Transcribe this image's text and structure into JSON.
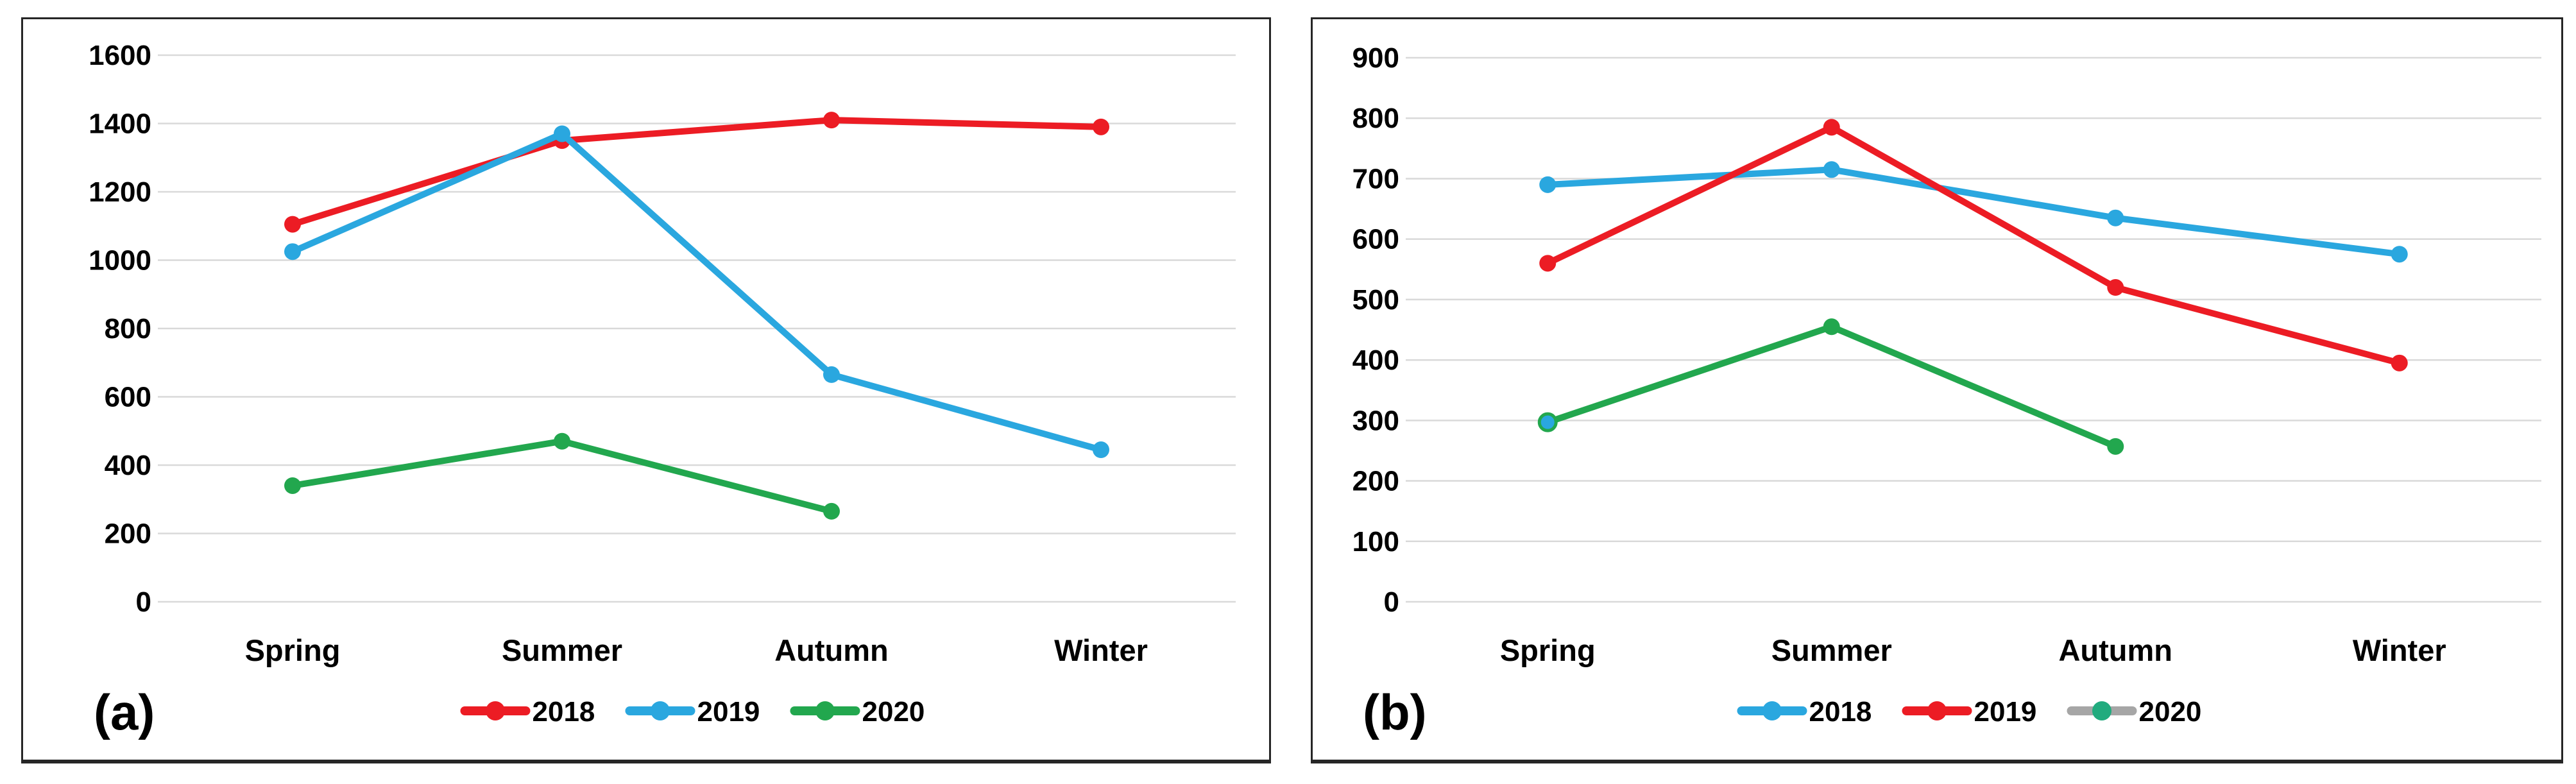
{
  "figure": {
    "background": "#ffffff",
    "panel_border_color": "#262626",
    "gridline_color": "#d9d9d9",
    "text_color": "#000000"
  },
  "chart_data": [
    {
      "type": "line",
      "panel_label": "(a)",
      "categories": [
        "Spring",
        "Summer",
        "Autumn",
        "Winter"
      ],
      "ylim": [
        0,
        1600
      ],
      "ytick_step": 200,
      "ytick_labels": [
        "0",
        "200",
        "400",
        "600",
        "800",
        "1000",
        "1200",
        "1400",
        "1600"
      ],
      "grid": true,
      "legend_position": "bottom",
      "series": [
        {
          "name": "2018",
          "color": "#ec1c24",
          "marker_color": "#ec1c24",
          "values": [
            1105,
            1350,
            1410,
            1390
          ]
        },
        {
          "name": "2019",
          "color": "#2aa7df",
          "marker_color": "#2aa7df",
          "values": [
            1025,
            1370,
            665,
            445
          ]
        },
        {
          "name": "2020",
          "color": "#22a74e",
          "marker_color": "#22a74e",
          "values": [
            340,
            470,
            265,
            null
          ]
        }
      ],
      "legend": [
        {
          "label": "2018",
          "line_color": "#ec1c24",
          "marker_color": "#ec1c24"
        },
        {
          "label": "2019",
          "line_color": "#2aa7df",
          "marker_color": "#2aa7df"
        },
        {
          "label": "2020",
          "line_color": "#22a74e",
          "marker_color": "#22a74e"
        }
      ]
    },
    {
      "type": "line",
      "panel_label": "(b)",
      "categories": [
        "Spring",
        "Summer",
        "Autumn",
        "Winter"
      ],
      "ylim": [
        0,
        900
      ],
      "ytick_step": 100,
      "ytick_labels": [
        "0",
        "100",
        "200",
        "300",
        "400",
        "500",
        "600",
        "700",
        "800",
        "900"
      ],
      "grid": true,
      "legend_position": "bottom",
      "series": [
        {
          "name": "2018",
          "color": "#2aa7df",
          "marker_color": "#2aa7df",
          "values": [
            690,
            715,
            635,
            575
          ]
        },
        {
          "name": "2019",
          "color": "#ec1c24",
          "marker_color": "#ec1c24",
          "values": [
            560,
            785,
            520,
            395
          ]
        },
        {
          "name": "2020",
          "color": "#22a74e",
          "marker_color": "#22a74e",
          "values": [
            297,
            455,
            257,
            null
          ],
          "marker_overrides": {
            "0": {
              "fill": "#2aa7df",
              "stroke": "#22a74e"
            }
          }
        }
      ],
      "legend": [
        {
          "label": "2018",
          "line_color": "#2aa7df",
          "marker_color": "#2aa7df"
        },
        {
          "label": "2019",
          "line_color": "#ec1c24",
          "marker_color": "#ec1c24"
        },
        {
          "label": "2020",
          "line_color": "#a6a6a6",
          "marker_color": "#21ab7e"
        }
      ]
    }
  ]
}
